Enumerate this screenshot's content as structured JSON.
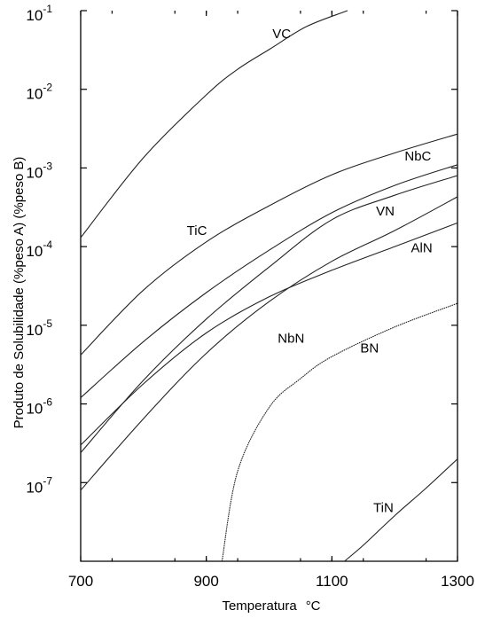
{
  "chart_data": {
    "type": "line",
    "title": "",
    "xlabel": "Temperatura",
    "xlabel_unit": "°C",
    "ylabel": "Produto de Solubilidade (%peso A) (%peso B)",
    "x_scale": "linear",
    "y_scale": "log",
    "xlim": [
      700,
      1300
    ],
    "ylim": [
      1e-08,
      0.1
    ],
    "x_ticks": [
      700,
      900,
      1100,
      1300
    ],
    "x_tick_labels": [
      "700",
      "900",
      "1100",
      "1300"
    ],
    "y_ticks": [
      {
        "value": 1e-07,
        "base": "10",
        "exp": "-7"
      },
      {
        "value": 1e-06,
        "base": "10",
        "exp": "-6"
      },
      {
        "value": 1e-05,
        "base": "10",
        "exp": "-5"
      },
      {
        "value": 0.0001,
        "base": "10",
        "exp": "-4"
      },
      {
        "value": 0.001,
        "base": "10",
        "exp": "-3"
      },
      {
        "value": 0.01,
        "base": "10",
        "exp": "-2"
      },
      {
        "value": 0.1,
        "base": "10",
        "exp": "-1"
      }
    ],
    "grid": false,
    "series": [
      {
        "name": "VC",
        "label_at": [
          1020,
          0.045
        ],
        "points": [
          [
            700,
            0.00013
          ],
          [
            800,
            0.00135
          ],
          [
            900,
            0.0085
          ],
          [
            950,
            0.018
          ],
          [
            1000,
            0.032
          ],
          [
            1060,
            0.063
          ],
          [
            1125,
            0.1
          ]
        ]
      },
      {
        "name": "TiC",
        "label_at": [
          885,
          0.00014
        ],
        "points": [
          [
            700,
            4.2e-06
          ],
          [
            800,
            2.8e-05
          ],
          [
            900,
            0.000115
          ],
          [
            1000,
            0.00033
          ],
          [
            1100,
            0.00082
          ],
          [
            1200,
            0.00155
          ],
          [
            1300,
            0.0027
          ]
        ]
      },
      {
        "name": "NbC",
        "label_at": [
          1237,
          0.00125
        ],
        "points": [
          [
            700,
            1.2e-06
          ],
          [
            800,
            6.2e-06
          ],
          [
            900,
            2.6e-05
          ],
          [
            1000,
            9e-05
          ],
          [
            1100,
            0.00027
          ],
          [
            1200,
            0.0006
          ],
          [
            1300,
            0.0011
          ]
        ]
      },
      {
        "name": "VN",
        "label_at": [
          1185,
          0.00025
        ],
        "points": [
          [
            700,
            2.4e-07
          ],
          [
            800,
            2e-06
          ],
          [
            900,
            1.2e-05
          ],
          [
            1000,
            5.5e-05
          ],
          [
            1100,
            0.00022
          ],
          [
            1200,
            0.00045
          ],
          [
            1300,
            0.0008
          ]
        ]
      },
      {
        "name": "AlN",
        "label_at": [
          1243,
          8.5e-05
        ],
        "points": [
          [
            700,
            8e-08
          ],
          [
            800,
            6.5e-07
          ],
          [
            900,
            4.4e-06
          ],
          [
            1000,
            2e-05
          ],
          [
            1100,
            6.5e-05
          ],
          [
            1200,
            0.00016
          ],
          [
            1300,
            0.00043
          ]
        ]
      },
      {
        "name": "NbN",
        "label_at": [
          1035,
          6e-06
        ],
        "points": [
          [
            700,
            3e-07
          ],
          [
            800,
            1.8e-06
          ],
          [
            900,
            8e-06
          ],
          [
            1000,
            2.3e-05
          ],
          [
            1100,
            5e-05
          ],
          [
            1200,
            0.0001
          ],
          [
            1300,
            0.0002
          ]
        ]
      },
      {
        "name": "BN",
        "label_at": [
          1160,
          4.5e-06
        ],
        "points": [
          [
            925,
            1e-08
          ],
          [
            950,
            1.4e-07
          ],
          [
            1000,
            9e-07
          ],
          [
            1050,
            2.1e-06
          ],
          [
            1100,
            4e-06
          ],
          [
            1200,
            9.5e-06
          ],
          [
            1300,
            1.9e-05
          ]
        ]
      },
      {
        "name": "TiN",
        "label_at": [
          1182,
          4.2e-08
        ],
        "points": [
          [
            1120,
            1e-08
          ],
          [
            1150,
            1.6e-08
          ],
          [
            1200,
            3.8e-08
          ],
          [
            1250,
            8.5e-08
          ],
          [
            1300,
            2e-07
          ]
        ]
      }
    ]
  }
}
